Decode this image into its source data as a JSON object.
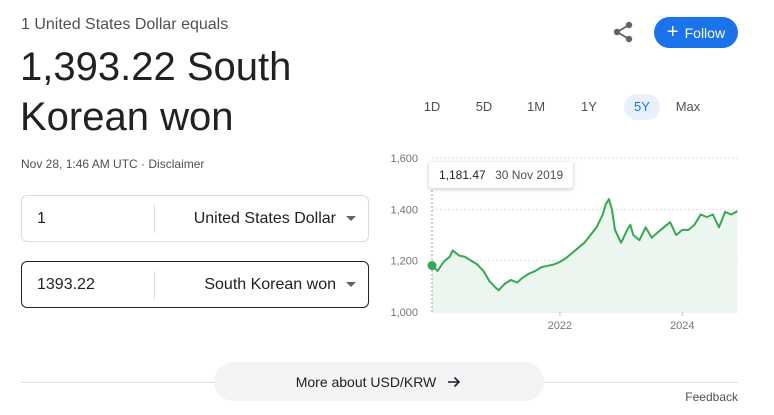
{
  "header": {
    "subtitle": "1 United States Dollar equals",
    "rate_line1": "1,393.22 South",
    "rate_line2": "Korean won",
    "timestamp": "Nov 28, 1:46 AM UTC",
    "separator": " · ",
    "disclaimer": "Disclaimer",
    "follow_label": "Follow",
    "share_icon": "share-icon"
  },
  "converter": {
    "from": {
      "amount": "1",
      "currency": "United States Dollar"
    },
    "to": {
      "amount": "1393.22",
      "currency": "South Korean won"
    }
  },
  "ranges": {
    "items": [
      "1D",
      "5D",
      "1M",
      "1Y",
      "5Y",
      "Max"
    ],
    "selected": "5Y"
  },
  "tooltip": {
    "value": "1,181.47",
    "date": "30 Nov 2019"
  },
  "chart_data": {
    "type": "area",
    "series": [
      {
        "x": [
          2019.91,
          2020.0,
          2020.1,
          2020.2,
          2020.25,
          2020.35,
          2020.45,
          2020.55,
          2020.65,
          2020.75,
          2020.85,
          2020.95,
          2021.0,
          2021.1,
          2021.2,
          2021.3,
          2021.4,
          2021.5,
          2021.6,
          2021.7,
          2021.8,
          2021.9,
          2022.0,
          2022.1,
          2022.2,
          2022.3,
          2022.4,
          2022.5,
          2022.6,
          2022.7,
          2022.75,
          2022.8,
          2022.85,
          2022.9,
          2023.0,
          2023.1,
          2023.15,
          2023.2,
          2023.3,
          2023.4,
          2023.5,
          2023.6,
          2023.7,
          2023.8,
          2023.9,
          2024.0,
          2024.1,
          2024.2,
          2024.3,
          2024.4,
          2024.5,
          2024.6,
          2024.7,
          2024.8,
          2024.9
        ],
        "y": [
          1181,
          1160,
          1195,
          1215,
          1240,
          1220,
          1215,
          1200,
          1185,
          1160,
          1120,
          1095,
          1085,
          1110,
          1125,
          1115,
          1135,
          1150,
          1160,
          1175,
          1180,
          1185,
          1195,
          1210,
          1230,
          1250,
          1270,
          1300,
          1330,
          1380,
          1420,
          1440,
          1400,
          1320,
          1270,
          1320,
          1340,
          1300,
          1280,
          1330,
          1290,
          1310,
          1330,
          1350,
          1300,
          1320,
          1320,
          1340,
          1380,
          1370,
          1380,
          1330,
          1390,
          1380,
          1393
        ]
      }
    ],
    "x_ticks": [
      2022,
      2024
    ],
    "y_ticks": [
      1000,
      1200,
      1400,
      1600
    ],
    "xlim": [
      2019.91,
      2024.91
    ],
    "ylim": [
      1000,
      1600
    ],
    "line_color": "#34a853",
    "fill_color": "#e6f4ea",
    "grid": true
  },
  "footer": {
    "more_label": "More about USD/KRW",
    "feedback": "Feedback"
  },
  "colors": {
    "accent": "#1a73e8",
    "chart_green": "#34a853"
  }
}
